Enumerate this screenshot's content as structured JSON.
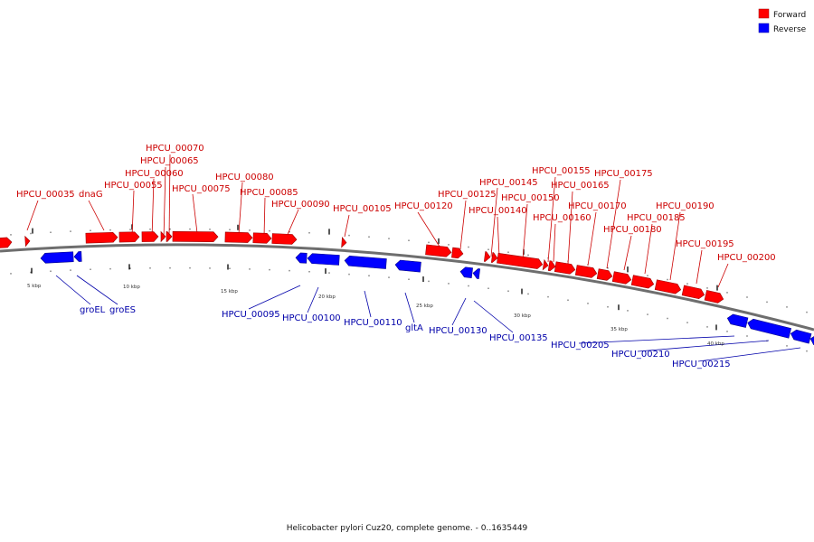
{
  "legend": {
    "forward": {
      "label": "Forward",
      "color": "#ff0000"
    },
    "reverse": {
      "label": "Reverse",
      "color": "#0000ff"
    }
  },
  "caption": "Helicobacter pylori Cuz20, complete genome. - 0..1635449",
  "scale_labels": [
    "5 kbp",
    "10 kbp",
    "15 kbp",
    "20 kbp",
    "25 kbp",
    "30 kbp",
    "35 kbp",
    "40 kbp"
  ],
  "forward_labels": [
    "HPCU_00035",
    "dnaG",
    "HPCU_00055",
    "HPCU_00060",
    "HPCU_00065",
    "HPCU_00070",
    "HPCU_00075",
    "HPCU_00080",
    "HPCU_00085",
    "HPCU_00090",
    "HPCU_00105",
    "HPCU_00120",
    "HPCU_00125",
    "HPCU_00140",
    "HPCU_00145",
    "HPCU_00150",
    "HPCU_00155",
    "HPCU_00160",
    "HPCU_00165",
    "HPCU_00170",
    "HPCU_00175",
    "HPCU_00180",
    "HPCU_00185",
    "HPCU_00190",
    "HPCU_00195",
    "HPCU_00200"
  ],
  "reverse_labels": [
    "groEL",
    "groES",
    "HPCU_00095",
    "HPCU_00100",
    "HPCU_00110",
    "gltA",
    "HPCU_00130",
    "HPCU_00135",
    "HPCU_00205",
    "HPCU_00210",
    "HPCU_00215"
  ]
}
